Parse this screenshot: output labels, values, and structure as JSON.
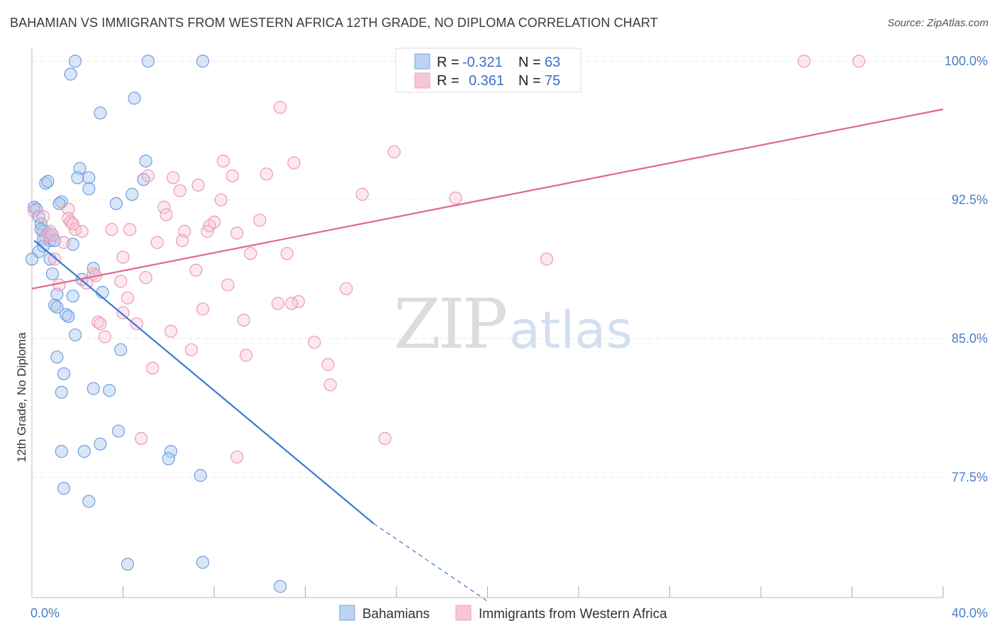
{
  "title": "BAHAMIAN VS IMMIGRANTS FROM WESTERN AFRICA 12TH GRADE, NO DIPLOMA CORRELATION CHART",
  "source": "Source: ZipAtlas.com",
  "watermark": {
    "zip": "ZIP",
    "atlas": "atlas"
  },
  "colors": {
    "blue": "#5b8fd6",
    "blue_line": "#3a78d8",
    "pink": "#e88aa6",
    "pink_line": "#e06690",
    "tick": "#4a7cc9"
  },
  "legend_top": {
    "rows": [
      {
        "r_label": "R =",
        "r_value": "-0.321",
        "n_label": "N =",
        "n_value": "63",
        "color": "blue"
      },
      {
        "r_label": "R =",
        "r_value": "0.361",
        "n_label": "N =",
        "n_value": "75",
        "color": "pink"
      }
    ]
  },
  "legend_bottom": [
    "Bahamians",
    "Immigrants from Western Africa"
  ],
  "chart_data": {
    "type": "scatter",
    "ylabel": "12th Grade, No Diploma",
    "xlim": [
      0,
      40
    ],
    "ylim": [
      71,
      100.7
    ],
    "x_tick_labels": [
      {
        "v": 0,
        "label": "0.0%"
      },
      {
        "v": 40,
        "label": "40.0%"
      }
    ],
    "x_minor_ticks": [
      4,
      8,
      12,
      16,
      20,
      24,
      28,
      32,
      36
    ],
    "y_ticks": [
      {
        "v": 100,
        "label": "100.0%"
      },
      {
        "v": 92.5,
        "label": "92.5%"
      },
      {
        "v": 85,
        "label": "85.0%"
      },
      {
        "v": 77.5,
        "label": "77.5%"
      }
    ],
    "series": [
      {
        "name": "Bahamians",
        "color": "blue",
        "trend": {
          "x0": 0.1,
          "y0": 90.3,
          "x1": 15.0,
          "y1": 75.0,
          "dash_x1": 20.0,
          "dash_y1": 70.8
        },
        "points": [
          [
            1.9,
            100.0
          ],
          [
            5.1,
            100.0
          ],
          [
            7.5,
            100.0
          ],
          [
            1.7,
            99.3
          ],
          [
            4.5,
            98.0
          ],
          [
            3.0,
            97.2
          ],
          [
            5.0,
            94.6
          ],
          [
            2.1,
            94.2
          ],
          [
            2.0,
            93.7
          ],
          [
            2.5,
            93.7
          ],
          [
            4.9,
            93.6
          ],
          [
            0.6,
            93.4
          ],
          [
            0.7,
            93.5
          ],
          [
            2.5,
            93.1
          ],
          [
            4.4,
            92.8
          ],
          [
            1.3,
            92.4
          ],
          [
            1.2,
            92.3
          ],
          [
            3.7,
            92.3
          ],
          [
            0.1,
            92.1
          ],
          [
            0.2,
            92.0
          ],
          [
            0.3,
            91.6
          ],
          [
            0.4,
            91.2
          ],
          [
            0.5,
            90.8
          ],
          [
            0.7,
            90.7
          ],
          [
            0.9,
            90.6
          ],
          [
            0.5,
            90.4
          ],
          [
            0.8,
            90.3
          ],
          [
            1.0,
            90.3
          ],
          [
            1.8,
            90.1
          ],
          [
            0.5,
            90.0
          ],
          [
            0.3,
            89.7
          ],
          [
            0.0,
            89.3
          ],
          [
            0.8,
            89.3
          ],
          [
            2.7,
            88.8
          ],
          [
            0.9,
            88.5
          ],
          [
            2.2,
            88.2
          ],
          [
            1.1,
            87.4
          ],
          [
            1.8,
            87.3
          ],
          [
            3.1,
            87.5
          ],
          [
            1.0,
            86.8
          ],
          [
            1.1,
            86.7
          ],
          [
            1.5,
            86.3
          ],
          [
            1.6,
            86.2
          ],
          [
            1.9,
            85.2
          ],
          [
            3.9,
            84.4
          ],
          [
            1.1,
            84.0
          ],
          [
            1.4,
            83.1
          ],
          [
            2.7,
            82.3
          ],
          [
            3.4,
            82.2
          ],
          [
            1.3,
            82.1
          ],
          [
            3.8,
            80.0
          ],
          [
            3.0,
            79.3
          ],
          [
            1.3,
            78.9
          ],
          [
            2.3,
            78.9
          ],
          [
            6.1,
            78.9
          ],
          [
            6.0,
            78.5
          ],
          [
            7.4,
            77.6
          ],
          [
            1.4,
            76.9
          ],
          [
            2.5,
            76.2
          ],
          [
            4.2,
            72.8
          ],
          [
            7.5,
            72.9
          ],
          [
            10.9,
            71.6
          ],
          [
            0.4,
            90.9
          ]
        ]
      },
      {
        "name": "Immigrants from Western Africa",
        "color": "pink",
        "trend": {
          "x0": 0.0,
          "y0": 87.7,
          "x1": 40.0,
          "y1": 97.4
        },
        "points": [
          [
            16.9,
            100.0
          ],
          [
            33.9,
            100.0
          ],
          [
            36.3,
            100.0
          ],
          [
            10.9,
            97.5
          ],
          [
            15.9,
            95.1
          ],
          [
            8.4,
            94.6
          ],
          [
            11.5,
            94.5
          ],
          [
            10.3,
            93.9
          ],
          [
            5.1,
            93.8
          ],
          [
            6.2,
            93.7
          ],
          [
            8.8,
            93.8
          ],
          [
            7.3,
            93.3
          ],
          [
            6.5,
            93.0
          ],
          [
            14.5,
            92.8
          ],
          [
            18.6,
            92.6
          ],
          [
            8.3,
            92.5
          ],
          [
            5.8,
            92.1
          ],
          [
            1.6,
            92.0
          ],
          [
            0.1,
            91.9
          ],
          [
            5.9,
            91.7
          ],
          [
            1.6,
            91.5
          ],
          [
            1.7,
            91.3
          ],
          [
            10.0,
            91.4
          ],
          [
            8.0,
            91.3
          ],
          [
            7.8,
            91.1
          ],
          [
            1.9,
            90.9
          ],
          [
            3.5,
            90.9
          ],
          [
            4.3,
            90.9
          ],
          [
            6.7,
            90.8
          ],
          [
            7.7,
            90.8
          ],
          [
            9.0,
            90.7
          ],
          [
            0.8,
            90.8
          ],
          [
            0.6,
            90.5
          ],
          [
            1.4,
            90.2
          ],
          [
            5.5,
            90.2
          ],
          [
            6.6,
            90.3
          ],
          [
            9.6,
            89.6
          ],
          [
            11.2,
            89.6
          ],
          [
            4.0,
            89.4
          ],
          [
            22.6,
            89.3
          ],
          [
            1.0,
            89.3
          ],
          [
            7.2,
            88.7
          ],
          [
            2.7,
            88.5
          ],
          [
            2.8,
            88.4
          ],
          [
            2.4,
            88.0
          ],
          [
            5.0,
            88.3
          ],
          [
            3.9,
            88.1
          ],
          [
            1.2,
            87.9
          ],
          [
            8.6,
            87.9
          ],
          [
            13.8,
            87.7
          ],
          [
            4.2,
            87.2
          ],
          [
            10.8,
            86.9
          ],
          [
            11.7,
            87.0
          ],
          [
            11.4,
            86.9
          ],
          [
            7.5,
            86.6
          ],
          [
            4.0,
            86.4
          ],
          [
            9.3,
            86.0
          ],
          [
            2.9,
            85.9
          ],
          [
            3.0,
            85.8
          ],
          [
            4.6,
            85.8
          ],
          [
            6.1,
            85.4
          ],
          [
            3.2,
            85.1
          ],
          [
            12.4,
            84.8
          ],
          [
            7.0,
            84.4
          ],
          [
            9.4,
            84.1
          ],
          [
            13.0,
            83.6
          ],
          [
            5.3,
            83.4
          ],
          [
            13.1,
            82.5
          ],
          [
            4.8,
            79.6
          ],
          [
            15.5,
            79.6
          ],
          [
            9.0,
            78.6
          ],
          [
            1.8,
            91.2
          ],
          [
            0.9,
            90.6
          ],
          [
            2.2,
            90.8
          ],
          [
            0.5,
            91.6
          ]
        ]
      }
    ]
  }
}
